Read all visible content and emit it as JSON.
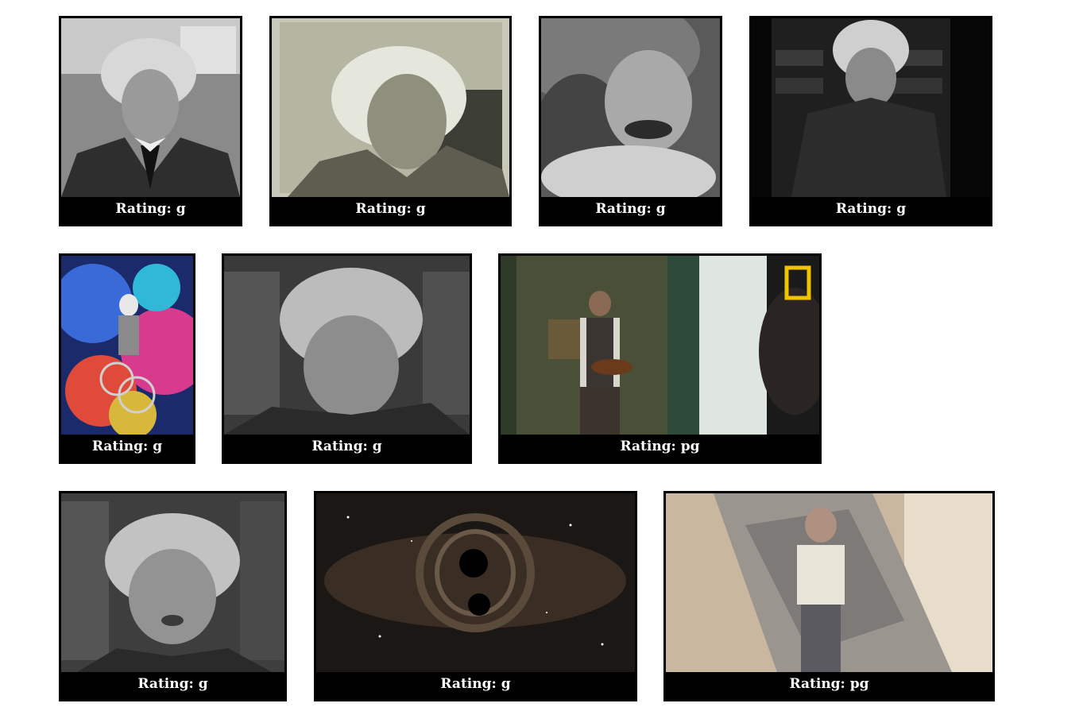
{
  "gallery": {
    "rows": [
      {
        "items": [
          {
            "icon": "einstein-portrait-suit-image",
            "rating": "Rating: g"
          },
          {
            "icon": "einstein-closeup-sepia-image",
            "rating": "Rating: g"
          },
          {
            "icon": "einstein-face-morph-image",
            "rating": "Rating: g"
          },
          {
            "icon": "einstein-pipe-bookshelf-image",
            "rating": "Rating: g"
          }
        ]
      },
      {
        "items": [
          {
            "icon": "einstein-bicycle-space-image",
            "rating": "Rating: g"
          },
          {
            "icon": "einstein-blurry-closeup-image",
            "rating": "Rating: g"
          },
          {
            "icon": "man-playing-violin-image",
            "rating": "Rating: pg"
          }
        ]
      },
      {
        "items": [
          {
            "icon": "einstein-speaking-image",
            "rating": "Rating: g"
          },
          {
            "icon": "black-holes-merging-image",
            "rating": "Rating: g"
          },
          {
            "icon": "einstein-figurine-image",
            "rating": "Rating: pg"
          }
        ]
      }
    ]
  }
}
